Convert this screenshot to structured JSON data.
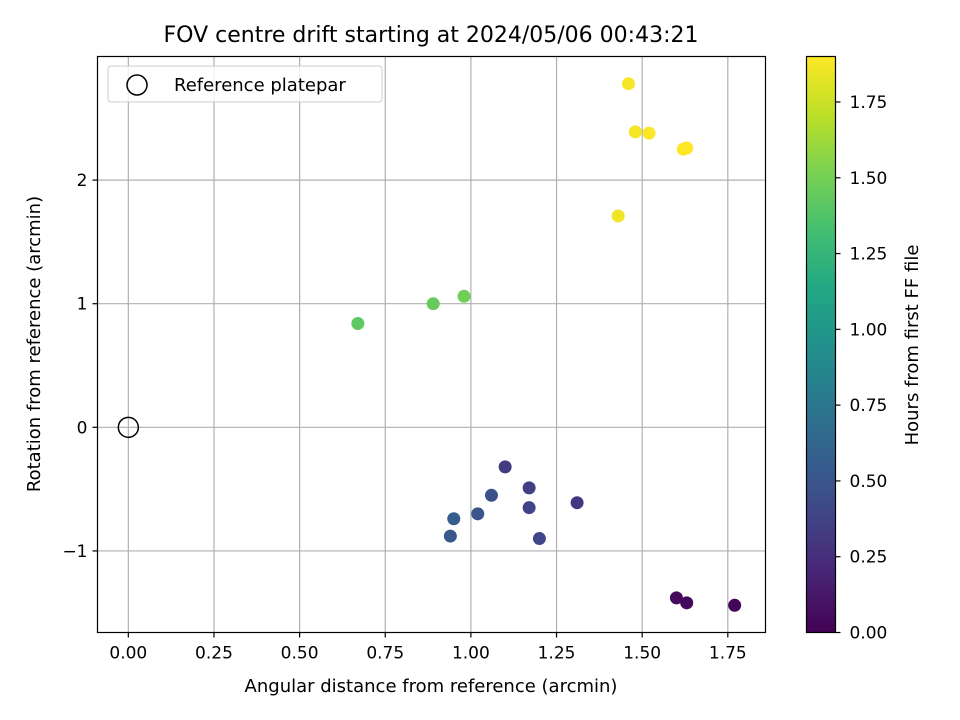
{
  "chart_data": {
    "type": "scatter",
    "title": "FOV centre drift starting at 2024/05/06 00:43:21",
    "xlabel": "Angular distance from reference (arcmin)",
    "ylabel": "Rotation from reference (arcmin)",
    "xlim": [
      -0.09,
      1.86
    ],
    "ylim": [
      -1.66,
      3.0
    ],
    "xticks": [
      0.0,
      0.25,
      0.5,
      0.75,
      1.0,
      1.25,
      1.5,
      1.75
    ],
    "xtick_labels": [
      "0.00",
      "0.25",
      "0.50",
      "0.75",
      "1.00",
      "1.25",
      "1.50",
      "1.75"
    ],
    "yticks": [
      -1,
      0,
      1,
      2
    ],
    "ytick_labels": [
      "−1",
      "0",
      "1",
      "2"
    ],
    "grid": true,
    "legend": {
      "location": "upper left",
      "entries": [
        "Reference platepar"
      ]
    },
    "reference_point": {
      "x": 0.0,
      "y": 0.0,
      "marker": "open-circle"
    },
    "colorbar": {
      "label": "Hours from first FF file",
      "colormap": "viridis",
      "range": [
        0.0,
        1.9
      ],
      "ticks": [
        0.0,
        0.25,
        0.5,
        0.75,
        1.0,
        1.25,
        1.5,
        1.75
      ],
      "tick_labels": [
        "0.00",
        "0.25",
        "0.50",
        "0.75",
        "1.00",
        "1.25",
        "1.50",
        "1.75"
      ]
    },
    "points": [
      {
        "x": 1.77,
        "y": -1.44,
        "hours": 0.02
      },
      {
        "x": 1.63,
        "y": -1.42,
        "hours": 0.04
      },
      {
        "x": 1.6,
        "y": -1.38,
        "hours": 0.06
      },
      {
        "x": 1.31,
        "y": -0.61,
        "hours": 0.3
      },
      {
        "x": 1.1,
        "y": -0.32,
        "hours": 0.33
      },
      {
        "x": 1.17,
        "y": -0.49,
        "hours": 0.35
      },
      {
        "x": 1.17,
        "y": -0.65,
        "hours": 0.38
      },
      {
        "x": 1.2,
        "y": -0.9,
        "hours": 0.4
      },
      {
        "x": 1.06,
        "y": -0.55,
        "hours": 0.47
      },
      {
        "x": 1.02,
        "y": -0.7,
        "hours": 0.5
      },
      {
        "x": 0.94,
        "y": -0.88,
        "hours": 0.53
      },
      {
        "x": 0.95,
        "y": -0.74,
        "hours": 0.56
      },
      {
        "x": 0.67,
        "y": 0.84,
        "hours": 1.42
      },
      {
        "x": 0.89,
        "y": 1.0,
        "hours": 1.45
      },
      {
        "x": 0.98,
        "y": 1.06,
        "hours": 1.48
      },
      {
        "x": 1.43,
        "y": 1.71,
        "hours": 1.86
      },
      {
        "x": 1.46,
        "y": 2.78,
        "hours": 1.88
      },
      {
        "x": 1.48,
        "y": 2.39,
        "hours": 1.88
      },
      {
        "x": 1.52,
        "y": 2.38,
        "hours": 1.89
      },
      {
        "x": 1.62,
        "y": 2.25,
        "hours": 1.9
      },
      {
        "x": 1.63,
        "y": 2.26,
        "hours": 1.9
      }
    ]
  }
}
